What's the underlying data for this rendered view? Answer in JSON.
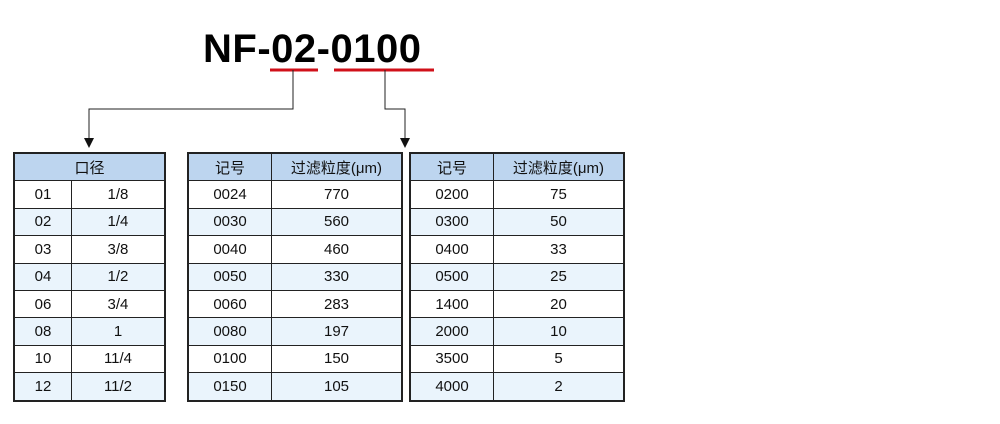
{
  "model_code": {
    "prefix": "NF-",
    "size_code": "02",
    "sep": "-",
    "filter_code": "0100"
  },
  "highlight_color": "#d0101a",
  "size_table": {
    "header": "口径",
    "rows": [
      [
        "01",
        "1/8"
      ],
      [
        "02",
        "1/4"
      ],
      [
        "03",
        "3/8"
      ],
      [
        "04",
        "1/2"
      ],
      [
        "06",
        "3/4"
      ],
      [
        "08",
        "1"
      ],
      [
        "10",
        "11/4"
      ],
      [
        "12",
        "11/2"
      ]
    ]
  },
  "filter_table_1": {
    "headers": [
      "记号",
      "过滤粒度(μm)"
    ],
    "rows": [
      [
        "0024",
        "770"
      ],
      [
        "0030",
        "560"
      ],
      [
        "0040",
        "460"
      ],
      [
        "0050",
        "330"
      ],
      [
        "0060",
        "283"
      ],
      [
        "0080",
        "197"
      ],
      [
        "0100",
        "150"
      ],
      [
        "0150",
        "105"
      ]
    ]
  },
  "filter_table_2": {
    "headers": [
      "记号",
      "过滤粒度(μm)"
    ],
    "rows": [
      [
        "0200",
        "75"
      ],
      [
        "0300",
        "50"
      ],
      [
        "0400",
        "33"
      ],
      [
        "0500",
        "25"
      ],
      [
        "1400",
        "20"
      ],
      [
        "2000",
        "10"
      ],
      [
        "3500",
        "5"
      ],
      [
        "4000",
        "2"
      ]
    ]
  }
}
